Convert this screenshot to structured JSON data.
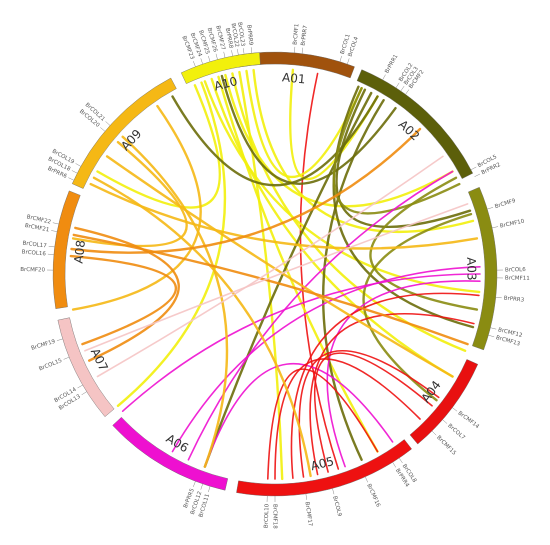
{
  "chromosomes": [
    {
      "id": "A01",
      "label": "A01",
      "color": "#a0520d",
      "start": -10,
      "end": 21
    },
    {
      "id": "A02",
      "label": "A02",
      "color": "#5c5f0a",
      "start": 23,
      "end": 63
    },
    {
      "id": "A03",
      "label": "A03",
      "color": "#8a8c12",
      "start": 67,
      "end": 110
    },
    {
      "id": "A04",
      "label": "A04",
      "color": "#e81010",
      "start": 114,
      "end": 140
    },
    {
      "id": "A05",
      "label": "A05",
      "color": "#ee1111",
      "start": 142,
      "end": 190
    },
    {
      "id": "A06",
      "label": "A06",
      "color": "#ee10d0",
      "start": 193,
      "end": 227
    },
    {
      "id": "A07",
      "label": "A07",
      "color": "#f5c4c4",
      "start": 230,
      "end": 258
    },
    {
      "id": "A08",
      "label": "A08",
      "color": "#f08c10",
      "start": 261,
      "end": 292
    },
    {
      "id": "A09",
      "label": "A09",
      "color": "#f5b815",
      "start": 294,
      "end": 332
    },
    {
      "id": "A10",
      "label": "A10",
      "color": "#f2f00c",
      "start": 335,
      "end": 356
    }
  ],
  "genes": [
    {
      "name": "BrCMF1",
      "angle": 5
    },
    {
      "name": "BrPRR7",
      "angle": 7
    },
    {
      "name": "BrCOL1",
      "angle": 17
    },
    {
      "name": "BrCOL4",
      "angle": 19
    },
    {
      "name": "BrPRR1",
      "angle": 29
    },
    {
      "name": "BrCOL2",
      "angle": 33
    },
    {
      "name": "BrCOL3",
      "angle": 34.5
    },
    {
      "name": "BrCMF2",
      "angle": 36
    },
    {
      "name": "BrCOL5",
      "angle": 62
    },
    {
      "name": "BrPRR2",
      "angle": 64
    },
    {
      "name": "BrCMF9",
      "angle": 73
    },
    {
      "name": "BrCMF10",
      "angle": 78
    },
    {
      "name": "BrCOL6",
      "angle": 89
    },
    {
      "name": "BrCMF11",
      "angle": 91
    },
    {
      "name": "BrPRR3",
      "angle": 96
    },
    {
      "name": "BrCMF12",
      "angle": 104
    },
    {
      "name": "BrCMF13",
      "angle": 106
    },
    {
      "name": "BrCMF14",
      "angle": 127
    },
    {
      "name": "BrCOL7",
      "angle": 131
    },
    {
      "name": "BrCMF15",
      "angle": 135
    },
    {
      "name": "BrCOL8",
      "angle": 146
    },
    {
      "name": "BrPRR4",
      "angle": 148
    },
    {
      "name": "BrCMF16",
      "angle": 156
    },
    {
      "name": "BrCOL9",
      "angle": 165
    },
    {
      "name": "BrCMF17",
      "angle": 172
    },
    {
      "name": "BrCMF18",
      "angle": 180
    },
    {
      "name": "BrCOL10",
      "angle": 182
    },
    {
      "name": "BrCOL11",
      "angle": 197
    },
    {
      "name": "BrCOL12",
      "angle": 199
    },
    {
      "name": "BrPRR5",
      "angle": 201
    },
    {
      "name": "BrCOL13",
      "angle": 238
    },
    {
      "name": "BrCOL14",
      "angle": 240
    },
    {
      "name": "BrCOL15",
      "angle": 248
    },
    {
      "name": "BrCMF19",
      "angle": 253
    },
    {
      "name": "BrCMF20",
      "angle": 271
    },
    {
      "name": "BrCOL16",
      "angle": 275
    },
    {
      "name": "BrCOL17",
      "angle": 277
    },
    {
      "name": "BrCMF21",
      "angle": 281
    },
    {
      "name": "BrCMF22",
      "angle": 283
    },
    {
      "name": "BrPRR6",
      "angle": 295
    },
    {
      "name": "BrCOL18",
      "angle": 297
    },
    {
      "name": "BrCOL19",
      "angle": 299
    },
    {
      "name": "BrCOL20",
      "angle": 310
    },
    {
      "name": "BrCOL21",
      "angle": 312
    },
    {
      "name": "BrCMF23",
      "angle": 339
    },
    {
      "name": "BrCMF24",
      "angle": 341
    },
    {
      "name": "BrCMF25",
      "angle": 343
    },
    {
      "name": "BrCMF26",
      "angle": 345
    },
    {
      "name": "BrCMF27",
      "angle": 347
    },
    {
      "name": "BrPRR8",
      "angle": 349
    },
    {
      "name": "BrCOL22",
      "angle": 350.5
    },
    {
      "name": "BrCOL23",
      "angle": 352
    },
    {
      "name": "BrPRR9",
      "angle": 354
    }
  ],
  "links": [
    {
      "a": 12,
      "b": 162,
      "color": "#ee1111",
      "w": 1.6
    },
    {
      "a": 5,
      "b": 30,
      "color": "#f2f00c",
      "w": 2.4
    },
    {
      "a": 340,
      "b": 95,
      "color": "#f2f00c",
      "w": 2.4
    },
    {
      "a": 342,
      "b": 120,
      "color": "#f2f00c",
      "w": 2.4
    },
    {
      "a": 344,
      "b": 150,
      "color": "#f2f00c",
      "w": 2.4
    },
    {
      "a": 346,
      "b": 60,
      "color": "#f2f00c",
      "w": 2.4
    },
    {
      "a": 348,
      "b": 112,
      "color": "#f2f00c",
      "w": 2.4
    },
    {
      "a": 350,
      "b": 178,
      "color": "#f2f00c",
      "w": 2.4
    },
    {
      "a": 352,
      "b": 25,
      "color": "#f2f00c",
      "w": 2.4
    },
    {
      "a": 339,
      "b": 230,
      "color": "#f2f00c",
      "w": 2.4
    },
    {
      "a": 337,
      "b": 300,
      "color": "#f2f00c",
      "w": 2.4
    },
    {
      "a": 354,
      "b": 75,
      "color": "#f2f00c",
      "w": 2.4
    },
    {
      "a": 24,
      "b": 105,
      "color": "#6b6d0a",
      "w": 2.4
    },
    {
      "a": 26,
      "b": 72,
      "color": "#6b6d0a",
      "w": 2.4
    },
    {
      "a": 28,
      "b": 200,
      "color": "#6b6d0a",
      "w": 2.4
    },
    {
      "a": 30,
      "b": 330,
      "color": "#6b6d0a",
      "w": 2.4
    },
    {
      "a": 32,
      "b": 155,
      "color": "#6b6d0a",
      "w": 2.4
    },
    {
      "a": 36,
      "b": 345,
      "color": "#6b6d0a",
      "w": 2.4
    },
    {
      "a": 62,
      "b": 100,
      "color": "#8a8c12",
      "w": 2.4
    },
    {
      "a": 73,
      "b": 128,
      "color": "#8a8c12",
      "w": 2.4
    },
    {
      "a": 64,
      "b": 25,
      "color": "#8a8c12",
      "w": 2.4
    },
    {
      "a": 90,
      "b": 228,
      "color": "#ee10d0",
      "w": 1.6
    },
    {
      "a": 88,
      "b": 210,
      "color": "#ee10d0",
      "w": 1.6
    },
    {
      "a": 92,
      "b": 160,
      "color": "#ee10d0",
      "w": 1.6
    },
    {
      "a": 60,
      "b": 205,
      "color": "#ee10d0",
      "w": 1.6
    },
    {
      "a": 200,
      "b": 145,
      "color": "#ee10d0",
      "w": 1.6
    },
    {
      "a": 130,
      "b": 165,
      "color": "#ee1111",
      "w": 1.6
    },
    {
      "a": 127,
      "b": 172,
      "color": "#ee1111",
      "w": 1.6
    },
    {
      "a": 135,
      "b": 180,
      "color": "#ee1111",
      "w": 1.6
    },
    {
      "a": 96,
      "b": 175,
      "color": "#ee1111",
      "w": 1.6
    },
    {
      "a": 104,
      "b": 168,
      "color": "#ee1111",
      "w": 1.6
    },
    {
      "a": 150,
      "b": 182,
      "color": "#ee1111",
      "w": 1.6
    },
    {
      "a": 310,
      "b": 280,
      "color": "#f5b815",
      "w": 2.4
    },
    {
      "a": 312,
      "b": 200,
      "color": "#f5b815",
      "w": 2.4
    },
    {
      "a": 305,
      "b": 120,
      "color": "#f5b815",
      "w": 2.4
    },
    {
      "a": 298,
      "b": 170,
      "color": "#f5b815",
      "w": 2.4
    },
    {
      "a": 296,
      "b": 80,
      "color": "#f5b815",
      "w": 2.4
    },
    {
      "a": 325,
      "b": 260,
      "color": "#f5b815",
      "w": 2.4
    },
    {
      "a": 275,
      "b": 250,
      "color": "#f08c10",
      "w": 2.4
    },
    {
      "a": 277,
      "b": 45,
      "color": "#f08c10",
      "w": 2.4
    },
    {
      "a": 283,
      "b": 245,
      "color": "#f08c10",
      "w": 2.4
    },
    {
      "a": 281,
      "b": 110,
      "color": "#f08c10",
      "w": 2.4
    },
    {
      "a": 240,
      "b": 55,
      "color": "#f5c4c4",
      "w": 1.6
    },
    {
      "a": 248,
      "b": 70,
      "color": "#f5c4c4",
      "w": 1.6
    }
  ]
}
